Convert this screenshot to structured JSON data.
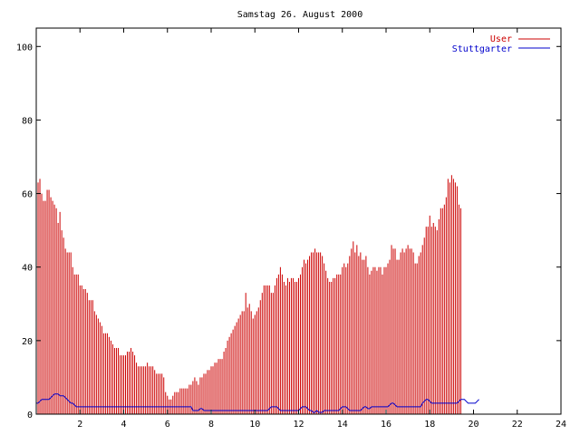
{
  "chart_data": {
    "type": "bar",
    "title": "Samstag 26. August 2000",
    "xlabel": "",
    "ylabel": "",
    "xlim": [
      0,
      24
    ],
    "ylim": [
      0,
      105
    ],
    "x_ticks": [
      2,
      4,
      6,
      8,
      10,
      12,
      14,
      16,
      18,
      20,
      22,
      24
    ],
    "y_ticks": [
      0,
      20,
      40,
      60,
      80,
      100
    ],
    "legend_position": "top-right",
    "grid": false,
    "step_minutes": 5,
    "series": [
      {
        "name": "User",
        "color": "#cc0000",
        "style": "impulses",
        "values": [
          63,
          63,
          64,
          60,
          58,
          58,
          61,
          61,
          59,
          58,
          57,
          56,
          52,
          55,
          50,
          48,
          45,
          44,
          44,
          44,
          40,
          38,
          38,
          38,
          35,
          35,
          34,
          34,
          33,
          31,
          31,
          31,
          28,
          27,
          26,
          25,
          24,
          22,
          22,
          22,
          21,
          20,
          19,
          18,
          18,
          18,
          16,
          16,
          16,
          16,
          17,
          17,
          18,
          17,
          16,
          14,
          13,
          13,
          13,
          13,
          13,
          14,
          13,
          13,
          13,
          12,
          11,
          11,
          11,
          11,
          10,
          6,
          5,
          4,
          4,
          5,
          6,
          6,
          6,
          7,
          7,
          7,
          7,
          7,
          8,
          8,
          9,
          10,
          9,
          8,
          10,
          10,
          11,
          11,
          12,
          12,
          13,
          13,
          14,
          14,
          15,
          15,
          15,
          17,
          18,
          20,
          21,
          22,
          23,
          24,
          25,
          26,
          27,
          28,
          28,
          33,
          29,
          30,
          28,
          26,
          27,
          28,
          29,
          31,
          33,
          35,
          35,
          35,
          35,
          33,
          33,
          35,
          37,
          38,
          40,
          38,
          36,
          35,
          37,
          36,
          37,
          37,
          36,
          36,
          37,
          38,
          40,
          42,
          41,
          42,
          43,
          44,
          44,
          45,
          44,
          44,
          44,
          43,
          41,
          39,
          37,
          36,
          36,
          37,
          37,
          38,
          38,
          38,
          40,
          41,
          40,
          41,
          43,
          45,
          47,
          44,
          46,
          43,
          44,
          42,
          42,
          43,
          40,
          38,
          39,
          40,
          40,
          39,
          40,
          40,
          38,
          40,
          40,
          41,
          42,
          46,
          45,
          45,
          42,
          42,
          44,
          45,
          44,
          45,
          46,
          45,
          45,
          44,
          41,
          41,
          43,
          44,
          46,
          48,
          51,
          51,
          54,
          51,
          52,
          51,
          50,
          53,
          56,
          56,
          57,
          59,
          64,
          63,
          65,
          64,
          63,
          62,
          57,
          56
        ]
      },
      {
        "name": "Stuttgarter",
        "color": "#0000cc",
        "style": "line",
        "values": [
          3,
          3,
          3.5,
          4,
          4,
          4,
          4,
          4,
          4.5,
          5,
          5.5,
          5.5,
          5.5,
          5,
          5,
          5,
          4.5,
          4,
          3.5,
          3,
          3,
          2.5,
          2,
          2,
          2,
          2,
          2,
          2,
          2,
          2,
          2,
          2,
          2,
          2,
          2,
          2,
          2,
          2,
          2,
          2,
          2,
          2,
          2,
          2,
          2,
          2,
          2,
          2,
          2,
          2,
          2,
          2,
          2,
          2,
          2,
          2,
          2,
          2,
          2,
          2,
          2,
          2,
          2,
          2,
          2,
          2,
          2,
          2,
          2,
          2,
          2,
          2,
          2,
          2,
          2,
          2,
          2,
          2,
          2,
          2,
          2,
          2,
          2,
          2,
          2,
          2,
          1,
          1,
          1,
          1,
          1.5,
          1.5,
          1,
          1,
          1,
          1,
          1,
          1,
          1,
          1,
          1,
          1,
          1,
          1,
          1,
          1,
          1,
          1,
          1,
          1,
          1,
          1,
          1,
          1,
          1,
          1,
          1,
          1,
          1,
          1,
          1,
          1,
          1,
          1,
          1,
          1,
          1,
          1,
          1.5,
          2,
          2,
          2,
          2,
          1.5,
          1,
          1,
          1,
          1,
          1,
          1,
          1,
          1,
          1,
          1,
          1,
          1.5,
          2,
          2,
          2,
          1.5,
          1,
          1,
          0.5,
          0.5,
          1,
          0.5,
          0.5,
          0.5,
          1,
          1,
          1,
          1,
          1,
          1,
          1,
          1,
          1,
          1.5,
          2,
          2,
          2,
          1.5,
          1,
          1,
          1,
          1,
          1,
          1,
          1,
          1.5,
          2,
          2,
          1.5,
          1.5,
          2,
          2,
          2,
          2,
          2,
          2,
          2,
          2,
          2,
          2,
          2.5,
          3,
          3,
          2.5,
          2,
          2,
          2,
          2,
          2,
          2,
          2,
          2,
          2,
          2,
          2,
          2,
          2,
          2,
          3,
          3.5,
          4,
          4,
          3.5,
          3,
          3,
          3,
          3,
          3,
          3,
          3,
          3,
          3,
          3,
          3,
          3,
          3,
          3,
          3,
          3.5,
          4,
          4,
          4,
          3.5,
          3,
          3,
          3,
          3,
          3,
          3.5,
          4
        ]
      }
    ]
  }
}
